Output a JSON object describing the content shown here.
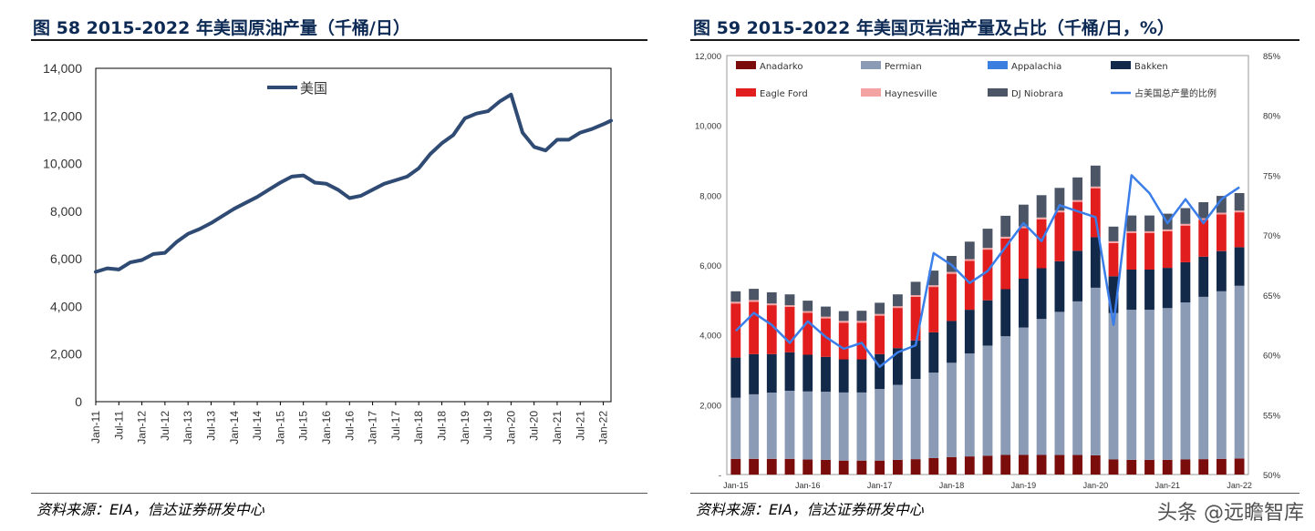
{
  "left": {
    "title": "图 58  2015-2022 年美国原油产量（千桶/日）",
    "source": "资料来源：EIA，信达证券研发中心"
  },
  "right": {
    "title": "图 59  2015-2022 年美国页岩油产量及占比（千桶/日，%）",
    "source": "资料来源：EIA，信达证券研发中心"
  },
  "watermark": "头条 @远瞻智库",
  "chart_data": [
    {
      "type": "line",
      "title": "图 58  2015-2022 年美国原油产量（千桶/日）",
      "ylim": [
        0,
        14000
      ],
      "y_ticks": [
        0,
        2000,
        4000,
        6000,
        8000,
        10000,
        12000,
        14000
      ],
      "x_ticks": [
        "Jan-11",
        "Jul-11",
        "Jan-12",
        "Jul-12",
        "Jan-13",
        "Jul-13",
        "Jan-14",
        "Jul-14",
        "Jan-15",
        "Jul-15",
        "Jan-16",
        "Jul-16",
        "Jan-17",
        "Jul-17",
        "Jan-18",
        "Jul-18",
        "Jan-19",
        "Jul-19",
        "Jan-20",
        "Jul-20",
        "Jan-21",
        "Jul-21",
        "Jan-22"
      ],
      "legend": "top-center",
      "series": [
        {
          "name": "美国",
          "color": "#2f4a73",
          "x": [
            "Jan-11",
            "Apr-11",
            "Jul-11",
            "Oct-11",
            "Jan-12",
            "Apr-12",
            "Jul-12",
            "Oct-12",
            "Jan-13",
            "Apr-13",
            "Jul-13",
            "Oct-13",
            "Jan-14",
            "Apr-14",
            "Jul-14",
            "Oct-14",
            "Jan-15",
            "Apr-15",
            "Jul-15",
            "Oct-15",
            "Jan-16",
            "Apr-16",
            "Jul-16",
            "Oct-16",
            "Jan-17",
            "Apr-17",
            "Jul-17",
            "Oct-17",
            "Jan-18",
            "Apr-18",
            "Jul-18",
            "Oct-18",
            "Jan-19",
            "Apr-19",
            "Jul-19",
            "Oct-19",
            "Jan-20",
            "Apr-20",
            "Jul-20",
            "Oct-20",
            "Jan-21",
            "Apr-21",
            "Jul-21",
            "Oct-21",
            "Jan-22",
            "Mar-22"
          ],
          "values": [
            5450,
            5600,
            5550,
            5850,
            5950,
            6200,
            6250,
            6700,
            7050,
            7250,
            7500,
            7800,
            8100,
            8350,
            8600,
            8900,
            9200,
            9450,
            9500,
            9200,
            9150,
            8900,
            8550,
            8650,
            8900,
            9150,
            9300,
            9450,
            9800,
            10400,
            10850,
            11200,
            11900,
            12100,
            12200,
            12600,
            12900,
            11300,
            10700,
            10550,
            11000,
            11000,
            11300,
            11450,
            11650,
            11800
          ]
        }
      ]
    },
    {
      "type": "bar",
      "title": "图 59  2015-2022 年美国页岩油产量及占比（千桶/日，%）",
      "ylim": [
        0,
        12000
      ],
      "y_ticks": [
        "-",
        "2,000",
        "4,000",
        "6,000",
        "8,000",
        "10,000",
        "12,000"
      ],
      "y2lim": [
        50,
        85
      ],
      "y2_ticks": [
        "50%",
        "55%",
        "60%",
        "65%",
        "70%",
        "75%",
        "80%",
        "85%"
      ],
      "x_ticks": [
        "Jan-15",
        "Jan-16",
        "Jan-17",
        "Jan-18",
        "Jan-19",
        "Jan-20",
        "Jan-21",
        "Jan-22"
      ],
      "stacked": true,
      "categories": [
        "Q1-15",
        "Q2-15",
        "Q3-15",
        "Q4-15",
        "Q1-16",
        "Q2-16",
        "Q3-16",
        "Q4-16",
        "Q1-17",
        "Q2-17",
        "Q3-17",
        "Q4-17",
        "Q1-18",
        "Q2-18",
        "Q3-18",
        "Q4-18",
        "Q1-19",
        "Q2-19",
        "Q3-19",
        "Q4-19",
        "Q1-20",
        "Q2-20",
        "Q3-20",
        "Q4-20",
        "Q1-21",
        "Q2-21",
        "Q3-21",
        "Q4-21",
        "Q1-22"
      ],
      "series": [
        {
          "name": "Anadarko",
          "color": "#7a0c0c",
          "values": [
            450,
            450,
            450,
            450,
            430,
            420,
            400,
            400,
            400,
            420,
            440,
            470,
            500,
            520,
            540,
            560,
            560,
            560,
            560,
            560,
            550,
            430,
            420,
            420,
            420,
            430,
            440,
            450,
            460
          ]
        },
        {
          "name": "Permian",
          "color": "#8c9bb5",
          "values": [
            1750,
            1850,
            1900,
            1950,
            1950,
            1950,
            1950,
            1950,
            2050,
            2150,
            2300,
            2450,
            2700,
            2950,
            3150,
            3400,
            3650,
            3900,
            4100,
            4400,
            4800,
            4200,
            4300,
            4300,
            4350,
            4500,
            4650,
            4800,
            4950
          ]
        },
        {
          "name": "Appalachia",
          "color": "#3a7fe0",
          "values": [
            0,
            0,
            0,
            0,
            0,
            0,
            0,
            0,
            0,
            0,
            0,
            0,
            0,
            0,
            0,
            0,
            0,
            0,
            0,
            0,
            0,
            0,
            0,
            0,
            0,
            0,
            0,
            0,
            0
          ]
        },
        {
          "name": "Bakken",
          "color": "#13294a",
          "values": [
            1150,
            1150,
            1100,
            1100,
            1050,
            1000,
            950,
            950,
            1000,
            1050,
            1100,
            1150,
            1200,
            1250,
            1300,
            1350,
            1400,
            1450,
            1450,
            1450,
            1450,
            1050,
            1150,
            1150,
            1150,
            1150,
            1150,
            1150,
            1100
          ]
        },
        {
          "name": "Eagle Ford",
          "color": "#e11d1d",
          "values": [
            1550,
            1500,
            1400,
            1300,
            1200,
            1100,
            1050,
            1050,
            1100,
            1150,
            1250,
            1300,
            1350,
            1400,
            1450,
            1450,
            1450,
            1400,
            1400,
            1400,
            1400,
            950,
            1050,
            1050,
            1050,
            1050,
            1050,
            1050,
            1000
          ]
        },
        {
          "name": "Haynesville",
          "color": "#f4a3a3",
          "values": [
            50,
            50,
            50,
            50,
            50,
            50,
            50,
            50,
            50,
            50,
            50,
            50,
            50,
            50,
            50,
            50,
            50,
            50,
            50,
            50,
            50,
            50,
            50,
            50,
            50,
            50,
            50,
            50,
            50
          ]
        },
        {
          "name": "DJ Niobrara",
          "color": "#4b5566",
          "values": [
            300,
            320,
            320,
            310,
            300,
            290,
            280,
            290,
            320,
            340,
            380,
            420,
            460,
            500,
            550,
            600,
            620,
            640,
            650,
            650,
            600,
            420,
            450,
            450,
            450,
            450,
            460,
            480,
            500
          ]
        }
      ],
      "line_series": [
        {
          "name": "占美国总产量的比例",
          "color": "#3b7ee9",
          "axis": "right",
          "values": [
            62.0,
            63.5,
            62.5,
            61.0,
            62.8,
            61.5,
            60.5,
            61.0,
            59.0,
            60.2,
            60.8,
            68.5,
            67.5,
            66.0,
            67.0,
            69.0,
            71.0,
            69.5,
            72.5,
            72.0,
            71.5,
            62.5,
            75.0,
            73.5,
            71.0,
            73.0,
            71.0,
            73.0,
            74.0
          ]
        }
      ],
      "legend": "top"
    }
  ]
}
